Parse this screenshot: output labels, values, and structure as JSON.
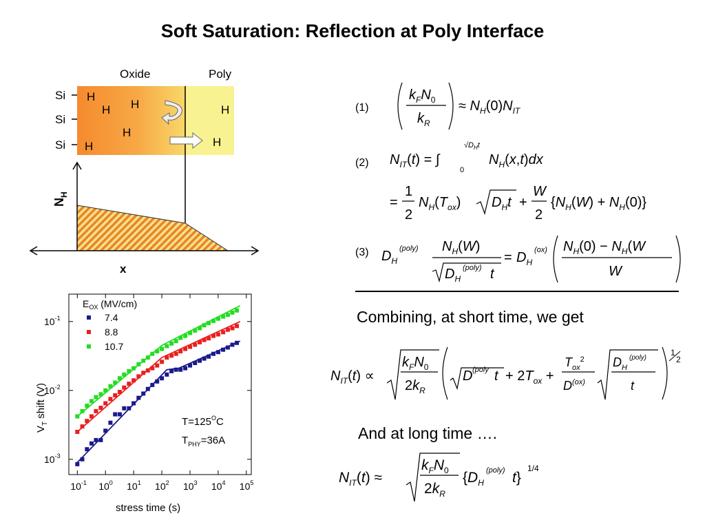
{
  "title": "Soft Saturation: Reflection at Poly Interface",
  "diagram": {
    "oxide_label": "Oxide",
    "poly_label": "Poly",
    "si_labels": [
      "Si",
      "Si",
      "Si"
    ],
    "h_label": "H",
    "y_axis_label": "N",
    "y_axis_sub": "H",
    "x_axis_label": "x",
    "colors": {
      "oxide": "#f5913a",
      "poly": "#f9f08a",
      "fill": "#e8801e"
    }
  },
  "equations": {
    "eq1_num": "(1)",
    "eq2_num": "(2)",
    "eq3_num": "(3)",
    "combining_text": "Combining, at short time, we get",
    "long_time_text": "And at long time …."
  },
  "chart_data": {
    "type": "scatter",
    "xlabel": "stress time (s)",
    "ylabel": "V",
    "ylabel_sub": "T",
    "ylabel_rest": " shift (V)",
    "x_scale": "log",
    "y_scale": "log",
    "xlim": [
      0.05,
      150000
    ],
    "ylim": [
      0.0006,
      0.25
    ],
    "x_tick_labels": [
      "10",
      "10",
      "10",
      "10",
      "10",
      "10",
      "10"
    ],
    "x_tick_exps": [
      "-1",
      "0",
      "1",
      "2",
      "3",
      "4",
      "5"
    ],
    "y_tick_labels": [
      "10",
      "10",
      "10"
    ],
    "y_tick_exps": [
      "-3",
      "-2",
      "-1"
    ],
    "legend_title": "E",
    "legend_title_sub": "OX",
    "legend_title_rest": " (MV/cm)",
    "legend_position": "top-left",
    "annotation_temp": "T=125",
    "annotation_temp_sup": "O",
    "annotation_temp_unit": "C",
    "annotation_t": "T",
    "annotation_t_sub": "PHY",
    "annotation_t_rest": "=36A",
    "series": [
      {
        "name": "7.4",
        "color": "#1a1a8c",
        "x": [
          0.1,
          0.15,
          0.22,
          0.32,
          0.46,
          0.68,
          1.0,
          1.5,
          2.2,
          3.2,
          4.6,
          6.8,
          10,
          15,
          22,
          32,
          46,
          68,
          100,
          150,
          220,
          320,
          460,
          680,
          1000,
          1500,
          2200,
          3200,
          4600,
          6800,
          10000,
          15000,
          22000,
          32000,
          46000
        ],
        "y": [
          0.00085,
          0.001,
          0.0014,
          0.0017,
          0.0019,
          0.0019,
          0.0026,
          0.0034,
          0.0045,
          0.0045,
          0.0055,
          0.0055,
          0.0065,
          0.0078,
          0.009,
          0.0105,
          0.012,
          0.0135,
          0.015,
          0.017,
          0.019,
          0.02,
          0.02,
          0.021,
          0.023,
          0.025,
          0.027,
          0.029,
          0.031,
          0.034,
          0.036,
          0.039,
          0.042,
          0.046,
          0.049
        ],
        "fit": [
          [
            0.1,
            0.0009
          ],
          [
            150,
            0.02
          ],
          [
            400,
            0.021
          ],
          [
            60000,
            0.052
          ]
        ]
      },
      {
        "name": "8.8",
        "color": "#e8201e",
        "x": [
          0.1,
          0.15,
          0.22,
          0.32,
          0.46,
          0.68,
          1.0,
          1.5,
          2.2,
          3.2,
          4.6,
          6.8,
          10,
          15,
          22,
          32,
          46,
          68,
          100,
          150,
          220,
          320,
          460,
          680,
          1000,
          1500,
          2200,
          3200,
          4600,
          6800,
          10000,
          15000,
          22000,
          32000,
          46000
        ],
        "y": [
          0.0025,
          0.003,
          0.0036,
          0.0042,
          0.005,
          0.0056,
          0.0065,
          0.0075,
          0.0085,
          0.0095,
          0.011,
          0.0125,
          0.014,
          0.016,
          0.018,
          0.0195,
          0.021,
          0.023,
          0.026,
          0.03,
          0.032,
          0.034,
          0.037,
          0.04,
          0.043,
          0.046,
          0.05,
          0.054,
          0.057,
          0.062,
          0.065,
          0.07,
          0.076,
          0.08,
          0.086
        ],
        "fit": [
          [
            0.1,
            0.0025
          ],
          [
            100,
            0.03
          ],
          [
            60000,
            0.1
          ]
        ]
      },
      {
        "name": "10.7",
        "color": "#22dd22",
        "x": [
          0.1,
          0.15,
          0.22,
          0.32,
          0.46,
          0.68,
          1.0,
          1.5,
          2.2,
          3.2,
          4.6,
          6.8,
          10,
          15,
          22,
          32,
          46,
          68,
          100,
          150,
          220,
          320,
          460,
          680,
          1000,
          1500,
          2200,
          3200,
          4600,
          6800,
          10000,
          15000,
          22000,
          32000,
          46000
        ],
        "y": [
          0.0042,
          0.005,
          0.006,
          0.007,
          0.008,
          0.0088,
          0.01,
          0.0115,
          0.013,
          0.015,
          0.017,
          0.019,
          0.021,
          0.024,
          0.027,
          0.03,
          0.034,
          0.037,
          0.04,
          0.044,
          0.048,
          0.052,
          0.058,
          0.062,
          0.068,
          0.074,
          0.08,
          0.088,
          0.095,
          0.102,
          0.11,
          0.118,
          0.125,
          0.135,
          0.145
        ],
        "fit": [
          [
            0.1,
            0.0042
          ],
          [
            100,
            0.045
          ],
          [
            60000,
            0.17
          ]
        ]
      }
    ]
  }
}
